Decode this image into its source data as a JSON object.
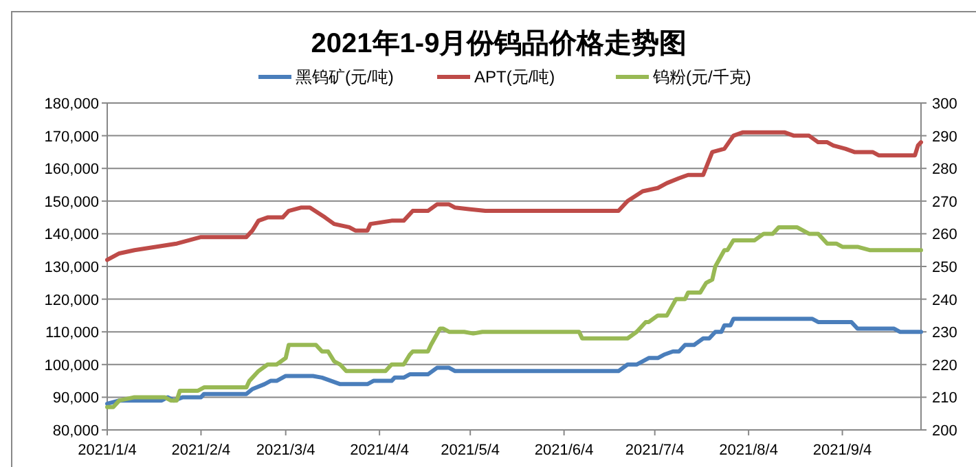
{
  "chart_data": {
    "type": "line",
    "title": "2021年1-9月份钨品价格走势图",
    "legend": "top",
    "grid": "y",
    "line_style": "solid",
    "marker": "none",
    "xlim": [
      "2021-01-04",
      "2021-09-30"
    ],
    "xticks": [
      {
        "value": "2021-01-04",
        "label": "2021/1/4"
      },
      {
        "value": "2021-02-04",
        "label": "2021/2/4"
      },
      {
        "value": "2021-03-04",
        "label": "2021/3/4"
      },
      {
        "value": "2021-04-04",
        "label": "2021/4/4"
      },
      {
        "value": "2021-05-04",
        "label": "2021/5/4"
      },
      {
        "value": "2021-06-04",
        "label": "2021/6/4"
      },
      {
        "value": "2021-07-04",
        "label": "2021/7/4"
      },
      {
        "value": "2021-08-04",
        "label": "2021/8/4"
      },
      {
        "value": "2021-09-04",
        "label": "2021/9/4"
      }
    ],
    "ylim": [
      80000,
      180000
    ],
    "yticks": [
      {
        "value": 80000,
        "label": "80,000"
      },
      {
        "value": 90000,
        "label": "90,000"
      },
      {
        "value": 100000,
        "label": "100,000"
      },
      {
        "value": 110000,
        "label": "110,000"
      },
      {
        "value": 120000,
        "label": "120,000"
      },
      {
        "value": 130000,
        "label": "130,000"
      },
      {
        "value": 140000,
        "label": "140,000"
      },
      {
        "value": 150000,
        "label": "150,000"
      },
      {
        "value": 160000,
        "label": "160,000"
      },
      {
        "value": 170000,
        "label": "170,000"
      },
      {
        "value": 180000,
        "label": "180,000"
      }
    ],
    "y2lim": [
      200,
      300
    ],
    "y2ticks": [
      200,
      210,
      220,
      230,
      240,
      250,
      260,
      270,
      280,
      290,
      300
    ],
    "series": [
      {
        "name": "黑钨矿(元/吨)",
        "color": "#4a7ebb",
        "x": [
          "2021-01-04",
          "2021-01-08",
          "2021-01-22",
          "2021-01-24",
          "2021-01-26",
          "2021-01-29",
          "2021-02-04",
          "2021-02-05",
          "2021-02-19",
          "2021-02-21",
          "2021-02-25",
          "2021-02-27",
          "2021-03-01",
          "2021-03-04",
          "2021-03-13",
          "2021-03-16",
          "2021-03-19",
          "2021-03-22",
          "2021-03-31",
          "2021-04-02",
          "2021-04-08",
          "2021-04-09",
          "2021-04-12",
          "2021-04-14",
          "2021-04-20",
          "2021-04-23",
          "2021-04-27",
          "2021-04-29",
          "2021-06-22",
          "2021-06-25",
          "2021-06-28",
          "2021-07-02",
          "2021-07-05",
          "2021-07-07",
          "2021-07-10",
          "2021-07-12",
          "2021-07-14",
          "2021-07-17",
          "2021-07-20",
          "2021-07-22",
          "2021-07-24",
          "2021-07-26",
          "2021-07-27",
          "2021-07-29",
          "2021-07-30",
          "2021-08-25",
          "2021-08-27",
          "2021-09-07",
          "2021-09-09",
          "2021-09-21",
          "2021-09-23",
          "2021-09-30"
        ],
        "values": [
          88000,
          89000,
          89000,
          90000,
          89000,
          90000,
          90000,
          91000,
          91000,
          92500,
          94000,
          95000,
          95000,
          96500,
          96500,
          96000,
          95000,
          94000,
          94000,
          95000,
          95000,
          96000,
          96000,
          97000,
          97000,
          99000,
          99000,
          98000,
          98000,
          100000,
          100000,
          102000,
          102000,
          103000,
          104000,
          104000,
          106000,
          106000,
          108000,
          108000,
          110000,
          110000,
          112000,
          112000,
          114000,
          114000,
          113000,
          113000,
          111000,
          111000,
          110000,
          110000
        ]
      },
      {
        "name": "APT(元/吨)",
        "color": "#be4b48",
        "x": [
          "2021-01-04",
          "2021-01-08",
          "2021-01-13",
          "2021-01-20",
          "2021-01-27",
          "2021-02-04",
          "2021-02-19",
          "2021-02-21",
          "2021-02-23",
          "2021-02-26",
          "2021-03-03",
          "2021-03-05",
          "2021-03-09",
          "2021-03-12",
          "2021-03-17",
          "2021-03-20",
          "2021-03-25",
          "2021-03-27",
          "2021-03-31",
          "2021-04-01",
          "2021-04-08",
          "2021-04-12",
          "2021-04-15",
          "2021-04-20",
          "2021-04-23",
          "2021-04-27",
          "2021-04-29",
          "2021-05-04",
          "2021-05-09",
          "2021-06-22",
          "2021-06-25",
          "2021-06-30",
          "2021-07-05",
          "2021-07-08",
          "2021-07-12",
          "2021-07-15",
          "2021-07-20",
          "2021-07-23",
          "2021-07-27",
          "2021-07-30",
          "2021-08-02",
          "2021-08-16",
          "2021-08-19",
          "2021-08-24",
          "2021-08-27",
          "2021-08-30",
          "2021-09-01",
          "2021-09-05",
          "2021-09-08",
          "2021-09-14",
          "2021-09-16",
          "2021-09-28",
          "2021-09-29",
          "2021-09-30"
        ],
        "values": [
          132000,
          134000,
          135000,
          136000,
          137000,
          139000,
          139000,
          141000,
          144000,
          145000,
          145000,
          147000,
          148000,
          148000,
          145000,
          143000,
          142000,
          141000,
          141000,
          143000,
          144000,
          144000,
          147000,
          147000,
          149000,
          149000,
          148000,
          147500,
          147000,
          147000,
          150000,
          153000,
          154000,
          155500,
          157000,
          158000,
          158000,
          165000,
          166000,
          170000,
          171000,
          171000,
          170000,
          170000,
          168000,
          168000,
          167000,
          166000,
          165000,
          165000,
          164000,
          164000,
          167000,
          168000
        ]
      },
      {
        "name": "钨粉(元/千克)",
        "color": "#98b954",
        "axis": "y2",
        "x": [
          "2021-01-04",
          "2021-01-06",
          "2021-01-08",
          "2021-01-13",
          "2021-01-23",
          "2021-01-25",
          "2021-01-27",
          "2021-01-28",
          "2021-02-03",
          "2021-02-05",
          "2021-02-19",
          "2021-02-20",
          "2021-02-23",
          "2021-02-26",
          "2021-03-01",
          "2021-03-04",
          "2021-03-05",
          "2021-03-14",
          "2021-03-16",
          "2021-03-18",
          "2021-03-20",
          "2021-03-22",
          "2021-03-24",
          "2021-04-06",
          "2021-04-08",
          "2021-04-12",
          "2021-04-14",
          "2021-04-15",
          "2021-04-20",
          "2021-04-21",
          "2021-04-24",
          "2021-04-25",
          "2021-04-27",
          "2021-05-02",
          "2021-05-05",
          "2021-05-08",
          "2021-06-09",
          "2021-06-10",
          "2021-06-25",
          "2021-06-28",
          "2021-07-01",
          "2021-07-02",
          "2021-07-05",
          "2021-07-08",
          "2021-07-11",
          "2021-07-14",
          "2021-07-15",
          "2021-07-19",
          "2021-07-21",
          "2021-07-23",
          "2021-07-24",
          "2021-07-27",
          "2021-07-28",
          "2021-07-30",
          "2021-08-06",
          "2021-08-09",
          "2021-08-12",
          "2021-08-14",
          "2021-08-20",
          "2021-08-24",
          "2021-08-27",
          "2021-08-30",
          "2021-09-02",
          "2021-09-04",
          "2021-09-09",
          "2021-09-13",
          "2021-09-30"
        ],
        "values": [
          207,
          207,
          209,
          210,
          210,
          209,
          209,
          212,
          212,
          213,
          213,
          215,
          218,
          220,
          220,
          222,
          226,
          226,
          224,
          224,
          221,
          220,
          218,
          218,
          220,
          220,
          223,
          224,
          224,
          226,
          231,
          231,
          230,
          230,
          229.5,
          230,
          230,
          228,
          228,
          230,
          233,
          233,
          235,
          235,
          240,
          240,
          242,
          242,
          245,
          246,
          250,
          255,
          255,
          258,
          258,
          260,
          260,
          262,
          262,
          260,
          260,
          257,
          257,
          256,
          256,
          255,
          255
        ]
      }
    ]
  }
}
